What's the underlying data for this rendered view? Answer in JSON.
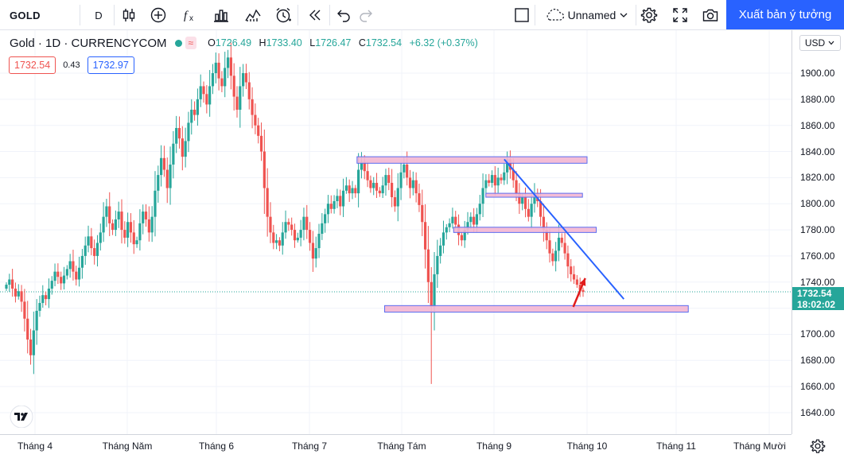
{
  "toolbar": {
    "symbol": "GOLD",
    "interval": "D",
    "layout_name": "Unnamed",
    "publish_label": "Xuất bản ý tưởng",
    "icons": [
      "candles-icon",
      "add-indicator-icon",
      "fx-icon",
      "bar-template-icon",
      "compare-icon",
      "alert-clock-icon",
      "replay-icon",
      "undo-icon",
      "redo-icon",
      "square-icon",
      "cloud-icon",
      "chevron-down-icon",
      "gear-icon",
      "fullscreen-icon",
      "camera-icon"
    ]
  },
  "legend": {
    "title": "Gold · 1D · CURRENCYCOM",
    "pill": "≈",
    "open_key": "O",
    "open": "1726.49",
    "high_key": "H",
    "high": "1733.40",
    "low_key": "L",
    "low": "1726.47",
    "close_key": "C",
    "close": "1732.54",
    "change": "+6.32 (+0.37%)",
    "sell": "1732.54",
    "spread": "0.43",
    "buy": "1732.97"
  },
  "price_axis": {
    "currency": "USD",
    "labels": [
      "1900.00",
      "1880.00",
      "1860.00",
      "1840.00",
      "1820.00",
      "1800.00",
      "1780.00",
      "1760.00",
      "1740.00",
      "1700.00",
      "1680.00",
      "1660.00",
      "1640.00"
    ],
    "last_price": "1732.54",
    "countdown": "18:02:02"
  },
  "time_axis": {
    "labels": [
      "Tháng 4",
      "Tháng Năm",
      "Tháng 6",
      "Tháng 7",
      "Tháng Tám",
      "Tháng 9",
      "Tháng 10",
      "Tháng 11",
      "Tháng Mười"
    ]
  },
  "colors": {
    "up": "#26a69a",
    "down": "#ef5350",
    "zone_fill": "#f3b6d2",
    "zone_border": "#5b6cf0",
    "trendline": "#2962ff",
    "arrow": "#e01b1b",
    "accent": "#2962ff"
  },
  "chart_data": {
    "type": "candlestick",
    "y_range": [
      1630,
      1925
    ],
    "last_price": 1732.54,
    "zones": [
      {
        "from_month": 7.5,
        "to_month": 10.0,
        "low": 1831,
        "high": 1836
      },
      {
        "from_month": 8.9,
        "to_month": 9.95,
        "low": 1805,
        "high": 1808
      },
      {
        "from_month": 8.55,
        "to_month": 10.1,
        "low": 1778,
        "high": 1782
      },
      {
        "from_month": 7.8,
        "to_month": 11.1,
        "low": 1717,
        "high": 1722
      }
    ],
    "trendline": {
      "start": {
        "month": 9.1,
        "price": 1834
      },
      "end": {
        "month": 10.4,
        "price": 1727
      }
    },
    "arrow": {
      "start": {
        "month": 9.85,
        "price": 1721
      },
      "end": {
        "month": 9.98,
        "price": 1743
      }
    },
    "candles_close": [
      1738,
      1742,
      1735,
      1729,
      1733,
      1725,
      1712,
      1696,
      1684,
      1703,
      1718,
      1724,
      1730,
      1727,
      1735,
      1741,
      1748,
      1744,
      1739,
      1745,
      1750,
      1756,
      1748,
      1742,
      1751,
      1760,
      1768,
      1775,
      1766,
      1760,
      1770,
      1778,
      1790,
      1798,
      1785,
      1780,
      1788,
      1794,
      1780,
      1774,
      1786,
      1778,
      1769,
      1772,
      1785,
      1794,
      1788,
      1778,
      1790,
      1810,
      1822,
      1835,
      1826,
      1812,
      1830,
      1846,
      1858,
      1850,
      1836,
      1848,
      1862,
      1872,
      1868,
      1880,
      1890,
      1884,
      1876,
      1890,
      1900,
      1908,
      1896,
      1890,
      1904,
      1912,
      1898,
      1882,
      1872,
      1890,
      1900,
      1893,
      1880,
      1868,
      1860,
      1852,
      1840,
      1812,
      1790,
      1778,
      1770,
      1772,
      1768,
      1778,
      1786,
      1784,
      1780,
      1772,
      1774,
      1780,
      1790,
      1780,
      1770,
      1758,
      1766,
      1777,
      1785,
      1792,
      1800,
      1796,
      1802,
      1806,
      1798,
      1810,
      1814,
      1808,
      1812,
      1808,
      1826,
      1832,
      1825,
      1818,
      1812,
      1816,
      1810,
      1808,
      1814,
      1822,
      1816,
      1805,
      1798,
      1812,
      1824,
      1830,
      1820,
      1812,
      1818,
      1808,
      1799,
      1786,
      1765,
      1740,
      1721,
      1746,
      1760,
      1768,
      1778,
      1782,
      1785,
      1790,
      1784,
      1776,
      1772,
      1780,
      1786,
      1790,
      1784,
      1792,
      1800,
      1812,
      1818,
      1816,
      1822,
      1814,
      1820,
      1818,
      1824,
      1834,
      1826,
      1818,
      1808,
      1800,
      1805,
      1796,
      1790,
      1800,
      1808,
      1802,
      1790,
      1780,
      1772,
      1762,
      1756,
      1764,
      1774,
      1770,
      1762,
      1752,
      1746,
      1742,
      1738,
      1734,
      1732.54
    ]
  }
}
